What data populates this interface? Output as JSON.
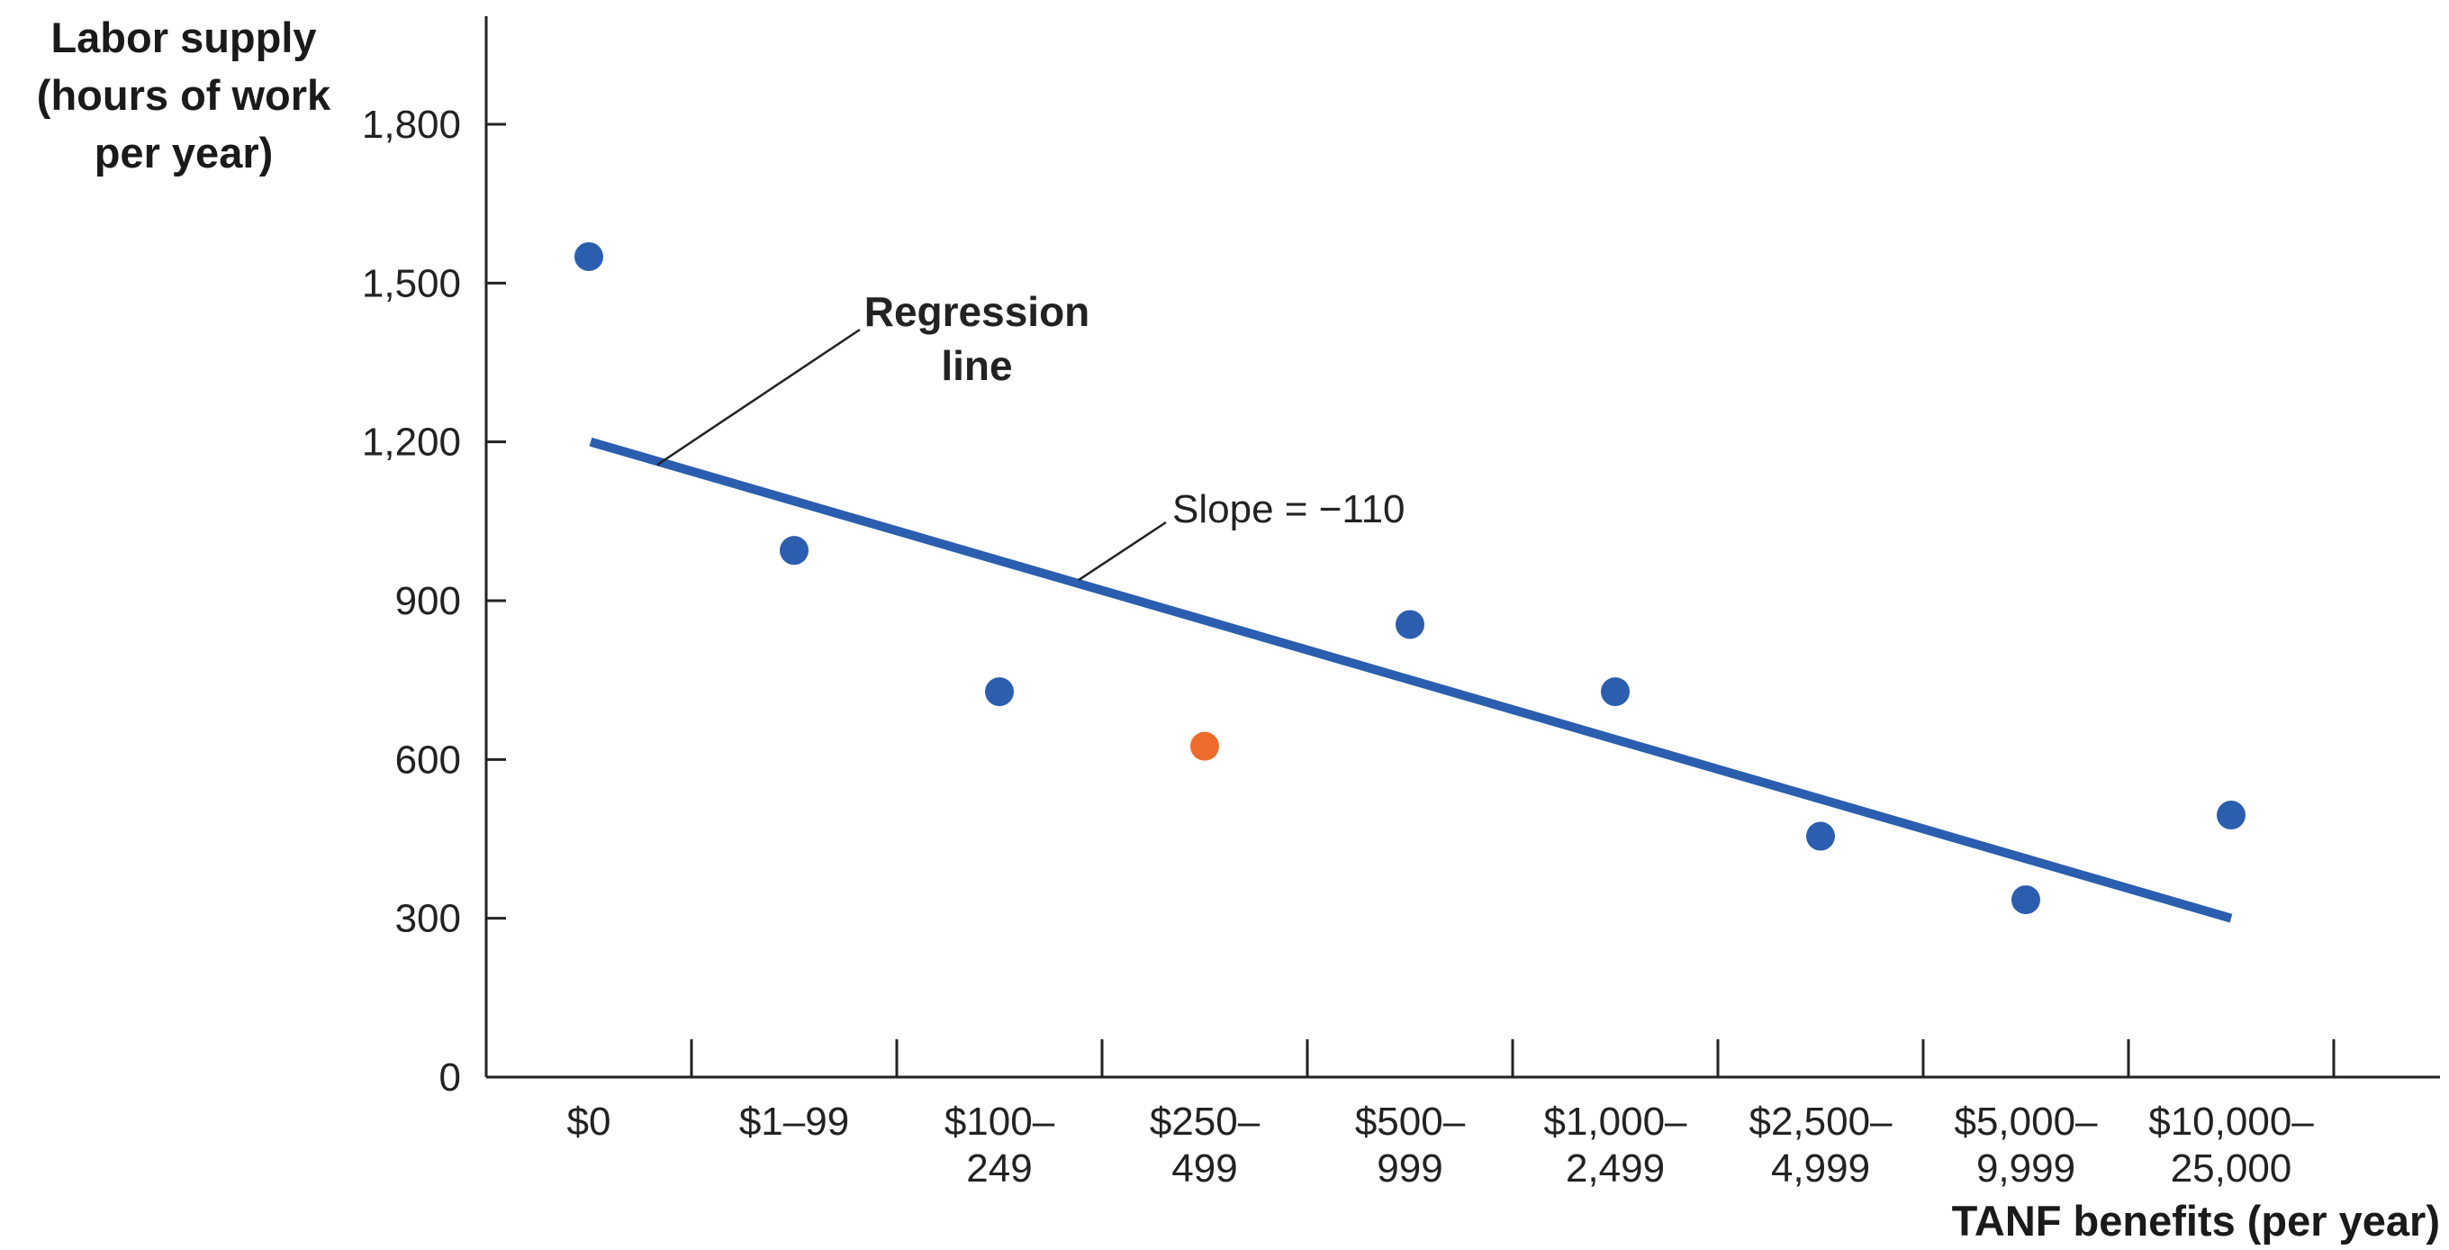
{
  "chart_data": {
    "type": "scatter",
    "ylabel_lines": [
      "Labor supply",
      "(hours of work",
      "per year)"
    ],
    "xlabel": "TANF benefits (per year)",
    "yticks": [
      0,
      300,
      600,
      900,
      1200,
      1500,
      1800
    ],
    "ytick_labels": [
      "0",
      "300",
      "600",
      "900",
      "1,200",
      "1,500",
      "1,800"
    ],
    "ylim": [
      0,
      1800
    ],
    "categories": [
      [
        "$0"
      ],
      [
        "$1–99"
      ],
      [
        "$100–",
        "249"
      ],
      [
        "$250–",
        "499"
      ],
      [
        "$500–",
        "999"
      ],
      [
        "$1,000–",
        "2,499"
      ],
      [
        "$2,500–",
        "4,999"
      ],
      [
        "$5,000–",
        "9,999"
      ],
      [
        "$10,000–",
        "25,000"
      ]
    ],
    "values": [
      1550,
      995,
      728,
      625,
      855,
      728,
      455,
      335,
      495
    ],
    "point_colors": [
      "#2b5eae",
      "#2b5eae",
      "#2b5eae",
      "#ef6b2b",
      "#2b5eae",
      "#2b5eae",
      "#2b5eae",
      "#2b5eae",
      "#2b5eae"
    ],
    "regression_line": {
      "y_start": 1200,
      "y_end": 300,
      "color": "#2b5eae"
    },
    "annotations": {
      "regression_label": [
        "Regression",
        "line"
      ],
      "slope_label": "Slope =  −110"
    },
    "grid": false
  }
}
